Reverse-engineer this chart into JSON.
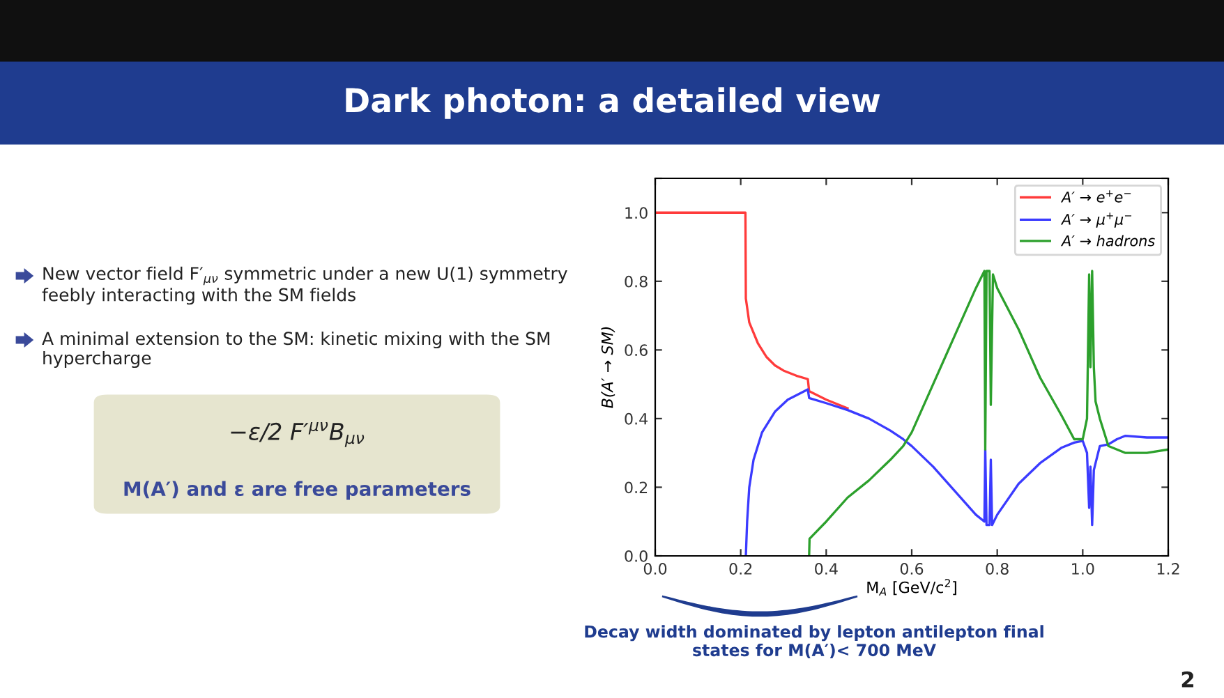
{
  "chart_data": {
    "type": "line",
    "title": "Dark photon: a detailed view",
    "xlabel": "M$_{A}$ [GeV/c$^{2}$]",
    "ylabel": "B(A′ → SM)",
    "xlim": [
      0,
      1.2
    ],
    "ylim": [
      0,
      1.1
    ],
    "xticks": [
      {
        "value": 0,
        "label": "0.0"
      },
      {
        "value": 0.2,
        "label": "0.2"
      },
      {
        "value": 0.4,
        "label": "0.4"
      },
      {
        "value": 0.6,
        "label": "0.6"
      },
      {
        "value": 0.8,
        "label": "0.8"
      },
      {
        "value": 1.0,
        "label": "1.0"
      },
      {
        "value": 1.2,
        "label": "1.2"
      }
    ],
    "yticks": [
      {
        "value": 0,
        "label": "0.0"
      },
      {
        "value": 0.2,
        "label": "0.2"
      },
      {
        "value": 0.4,
        "label": "0.4"
      },
      {
        "value": 0.6,
        "label": "0.6"
      },
      {
        "value": 0.8,
        "label": "0.8"
      },
      {
        "value": 1.0,
        "label": "1.0"
      },
      {
        "value": 1.1,
        "label": null
      }
    ],
    "grid": false,
    "legend": "top right",
    "series": [
      {
        "name": "A′ → e$^{+}$e$^{−}$",
        "color": "#ff3b3b",
        "x": [
          0,
          0.211,
          0.212,
          0.22,
          0.24,
          0.26,
          0.28,
          0.3,
          0.33,
          0.357,
          0.36,
          0.4,
          0.45
        ],
        "values": [
          1.0,
          1.0,
          0.75,
          0.68,
          0.62,
          0.58,
          0.555,
          0.54,
          0.525,
          0.515,
          0.48,
          0.455,
          0.43
        ]
      },
      {
        "name": "A′ → μ$^{+}$μ$^{−}$",
        "color": "#3b3bff",
        "x": [
          0.212,
          0.215,
          0.22,
          0.23,
          0.25,
          0.28,
          0.31,
          0.357,
          0.36,
          0.4,
          0.45,
          0.5,
          0.55,
          0.58,
          0.6,
          0.65,
          0.7,
          0.75,
          0.77,
          0.772,
          0.775,
          0.782,
          0.785,
          0.788,
          0.8,
          0.85,
          0.9,
          0.95,
          0.98,
          1.0,
          1.01,
          1.015,
          1.018,
          1.022,
          1.026,
          1.03,
          1.04,
          1.06,
          1.08,
          1.1,
          1.15,
          1.2
        ],
        "values": [
          0,
          0.1,
          0.2,
          0.28,
          0.36,
          0.42,
          0.455,
          0.485,
          0.46,
          0.445,
          0.425,
          0.4,
          0.365,
          0.34,
          0.32,
          0.26,
          0.19,
          0.12,
          0.1,
          0.31,
          0.09,
          0.09,
          0.28,
          0.09,
          0.12,
          0.21,
          0.27,
          0.315,
          0.33,
          0.335,
          0.3,
          0.14,
          0.26,
          0.09,
          0.25,
          0.27,
          0.32,
          0.325,
          0.34,
          0.35,
          0.345,
          0.345
        ]
      },
      {
        "name": "A′ → hadrons",
        "color": "#2ca02c",
        "x": [
          0.36,
          0.361,
          0.4,
          0.45,
          0.5,
          0.55,
          0.58,
          0.6,
          0.65,
          0.7,
          0.75,
          0.77,
          0.772,
          0.775,
          0.782,
          0.785,
          0.79,
          0.8,
          0.85,
          0.9,
          0.95,
          0.98,
          1.0,
          1.01,
          1.015,
          1.018,
          1.022,
          1.026,
          1.03,
          1.04,
          1.05,
          1.06,
          1.08,
          1.1,
          1.15,
          1.2
        ],
        "values": [
          0,
          0.05,
          0.1,
          0.17,
          0.22,
          0.28,
          0.32,
          0.36,
          0.5,
          0.64,
          0.78,
          0.83,
          0.31,
          0.83,
          0.83,
          0.44,
          0.82,
          0.78,
          0.66,
          0.52,
          0.41,
          0.34,
          0.34,
          0.4,
          0.82,
          0.55,
          0.83,
          0.55,
          0.45,
          0.4,
          0.36,
          0.32,
          0.31,
          0.3,
          0.3,
          0.31
        ]
      }
    ],
    "annotations": [
      "New vector field F′$_{μν}$ symmetric under a new U(1) symmetry\nfeebly interacting with the SM fields",
      "A minimal extension to the SM: kinetic mixing with the SM\nhypercharge",
      "−ε/2 F′$^{μν}$B$_{μν}$",
      "M(A′) and ε are free parameters",
      "Decay width dominated by lepton antilepton final\nstates for M(A′)< 700 MeV",
      "2"
    ]
  }
}
